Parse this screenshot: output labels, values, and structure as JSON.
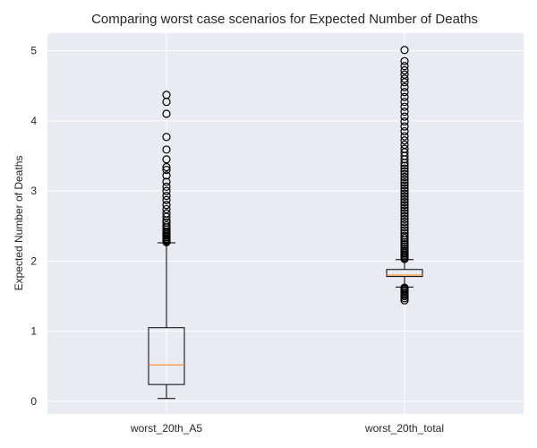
{
  "chart_data": {
    "type": "boxplot",
    "title": "Comparing worst case scenarios for Expected Number of Deaths",
    "xlabel": "",
    "ylabel": "Expected Number of Deaths",
    "ylim": [
      -0.18,
      5.25
    ],
    "y_ticks": [
      0,
      1,
      2,
      3,
      4,
      5
    ],
    "y_tick_labels": [
      "0",
      "1",
      "2",
      "3",
      "4",
      "5"
    ],
    "grid": true,
    "categories": [
      "worst_20th_A5",
      "worst_20th_total"
    ],
    "boxes": [
      {
        "label": "worst_20th_A5",
        "whisker_low": 0.04,
        "q1": 0.24,
        "median": 0.52,
        "q3": 1.05,
        "whisker_high": 2.26,
        "outliers": [
          2.27,
          2.28,
          2.29,
          2.3,
          2.31,
          2.32,
          2.34,
          2.36,
          2.38,
          2.4,
          2.42,
          2.45,
          2.48,
          2.51,
          2.55,
          2.58,
          2.63,
          2.68,
          2.74,
          2.8,
          2.87,
          2.93,
          3.0,
          3.06,
          3.13,
          3.22,
          3.3,
          3.34,
          3.45,
          3.59,
          3.77,
          4.1,
          4.27,
          4.37
        ]
      },
      {
        "label": "worst_20th_total",
        "whisker_low": 1.63,
        "q1": 1.78,
        "median": 1.8,
        "q3": 1.88,
        "whisker_high": 2.02,
        "outliers_low": [
          1.44,
          1.47,
          1.5,
          1.52,
          1.54,
          1.56,
          1.58,
          1.6,
          1.61,
          1.62
        ],
        "outliers": [
          2.03,
          2.05,
          2.07,
          2.09,
          2.11,
          2.13,
          2.15,
          2.18,
          2.21,
          2.24,
          2.27,
          2.3,
          2.33,
          2.36,
          2.4,
          2.44,
          2.48,
          2.52,
          2.56,
          2.6,
          2.64,
          2.68,
          2.72,
          2.76,
          2.8,
          2.84,
          2.88,
          2.92,
          2.96,
          3.0,
          3.04,
          3.08,
          3.12,
          3.16,
          3.2,
          3.24,
          3.28,
          3.32,
          3.36,
          3.4,
          3.45,
          3.5,
          3.55,
          3.6,
          3.66,
          3.72,
          3.78,
          3.85,
          3.92,
          3.99,
          4.06,
          4.13,
          4.2,
          4.27,
          4.34,
          4.41,
          4.48,
          4.55,
          4.6,
          4.66,
          4.72,
          4.78,
          4.85,
          5.01
        ]
      }
    ],
    "colors": {
      "plot_bg": "#eaeaf2",
      "grid": "#ffffff",
      "box": "#000000",
      "median": "#ff7f0e",
      "text": "#262626"
    }
  }
}
